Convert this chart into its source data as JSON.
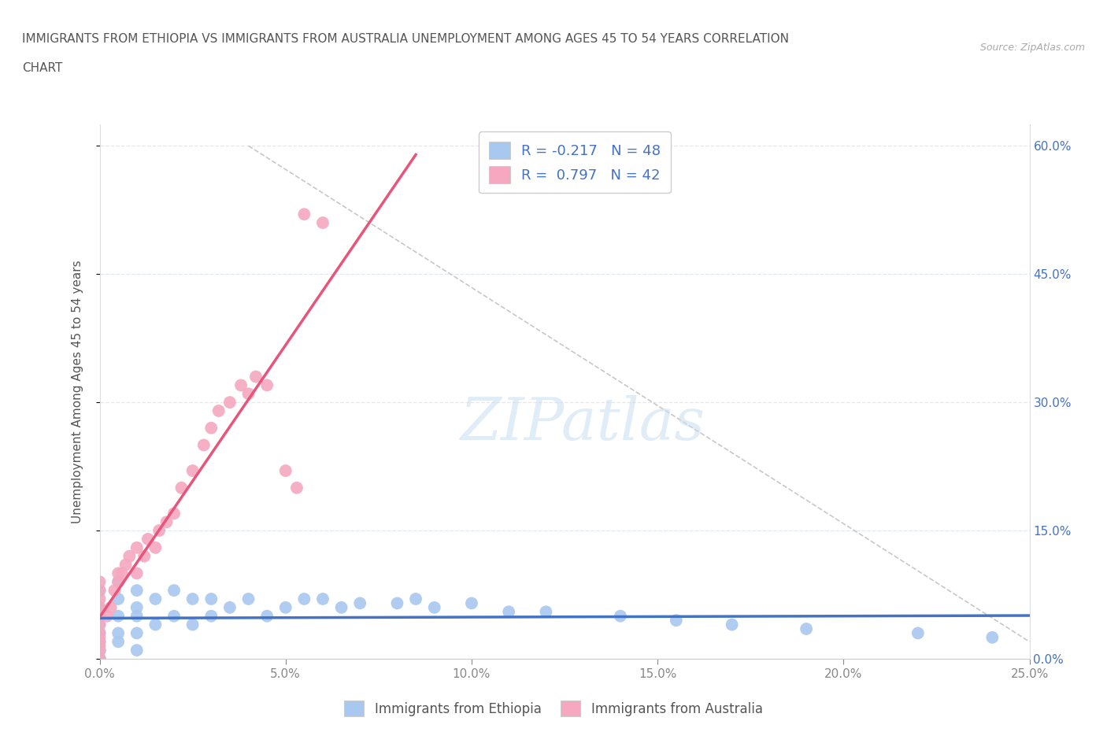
{
  "title_line1": "IMMIGRANTS FROM ETHIOPIA VS IMMIGRANTS FROM AUSTRALIA UNEMPLOYMENT AMONG AGES 45 TO 54 YEARS CORRELATION",
  "title_line2": "CHART",
  "source": "Source: ZipAtlas.com",
  "ylabel": "Unemployment Among Ages 45 to 54 years",
  "xlim": [
    0.0,
    0.25
  ],
  "ylim": [
    0.0,
    0.625
  ],
  "xticks": [
    0.0,
    0.05,
    0.1,
    0.15,
    0.2,
    0.25
  ],
  "yticks": [
    0.0,
    0.15,
    0.3,
    0.45,
    0.6
  ],
  "xticklabels": [
    "0.0%",
    "5.0%",
    "10.0%",
    "15.0%",
    "20.0%",
    "25.0%"
  ],
  "right_yticklabels": [
    "0.0%",
    "15.0%",
    "30.0%",
    "45.0%",
    "60.0%"
  ],
  "legend_ethiopia_label": "Immigrants from Ethiopia",
  "legend_australia_label": "Immigrants from Australia",
  "ethiopia_R": "-0.217",
  "ethiopia_N": "48",
  "australia_R": "0.797",
  "australia_N": "42",
  "ethiopia_color": "#a8c8f0",
  "australia_color": "#f5a8c0",
  "ethiopia_line_color": "#4472c4",
  "australia_line_color": "#e8547a",
  "ref_line_color": "#c8c8c8",
  "grid_color": "#e0e8f0",
  "title_color": "#555555",
  "right_axis_color": "#4472c4",
  "background_color": "#ffffff",
  "eth_x": [
    0.0,
    0.0,
    0.0,
    0.0,
    0.0,
    0.0,
    0.0,
    0.0,
    0.0,
    0.0,
    0.005,
    0.005,
    0.005,
    0.005,
    0.005,
    0.01,
    0.01,
    0.01,
    0.01,
    0.01,
    0.015,
    0.015,
    0.02,
    0.02,
    0.025,
    0.025,
    0.03,
    0.03,
    0.035,
    0.04,
    0.045,
    0.05,
    0.055,
    0.06,
    0.065,
    0.07,
    0.08,
    0.085,
    0.09,
    0.1,
    0.11,
    0.12,
    0.14,
    0.155,
    0.17,
    0.19,
    0.22,
    0.24
  ],
  "eth_y": [
    0.0,
    0.0,
    0.0,
    0.01,
    0.01,
    0.02,
    0.03,
    0.04,
    0.06,
    0.08,
    0.02,
    0.03,
    0.05,
    0.07,
    0.09,
    0.01,
    0.03,
    0.05,
    0.06,
    0.08,
    0.04,
    0.07,
    0.05,
    0.08,
    0.04,
    0.07,
    0.05,
    0.07,
    0.06,
    0.07,
    0.05,
    0.06,
    0.07,
    0.07,
    0.06,
    0.065,
    0.065,
    0.07,
    0.06,
    0.065,
    0.055,
    0.055,
    0.05,
    0.045,
    0.04,
    0.035,
    0.03,
    0.025
  ],
  "aus_x": [
    0.0,
    0.0,
    0.0,
    0.0,
    0.0,
    0.0,
    0.0,
    0.0,
    0.0,
    0.0,
    0.0,
    0.0,
    0.002,
    0.003,
    0.004,
    0.005,
    0.005,
    0.006,
    0.007,
    0.008,
    0.01,
    0.01,
    0.012,
    0.013,
    0.015,
    0.016,
    0.018,
    0.02,
    0.022,
    0.025,
    0.028,
    0.03,
    0.032,
    0.035,
    0.038,
    0.04,
    0.042,
    0.045,
    0.05,
    0.053,
    0.055,
    0.06
  ],
  "aus_y": [
    0.0,
    0.01,
    0.015,
    0.02,
    0.025,
    0.03,
    0.04,
    0.05,
    0.06,
    0.07,
    0.08,
    0.09,
    0.05,
    0.06,
    0.08,
    0.09,
    0.1,
    0.1,
    0.11,
    0.12,
    0.1,
    0.13,
    0.12,
    0.14,
    0.13,
    0.15,
    0.16,
    0.17,
    0.2,
    0.22,
    0.25,
    0.27,
    0.29,
    0.3,
    0.32,
    0.31,
    0.33,
    0.32,
    0.22,
    0.2,
    0.52,
    0.51
  ],
  "aus_line_x0": 0.0,
  "aus_line_x1": 0.085,
  "eth_line_x0": 0.0,
  "eth_line_x1": 0.25,
  "ref_line_x": [
    0.04,
    0.25
  ],
  "ref_line_y": [
    0.6,
    0.02
  ]
}
